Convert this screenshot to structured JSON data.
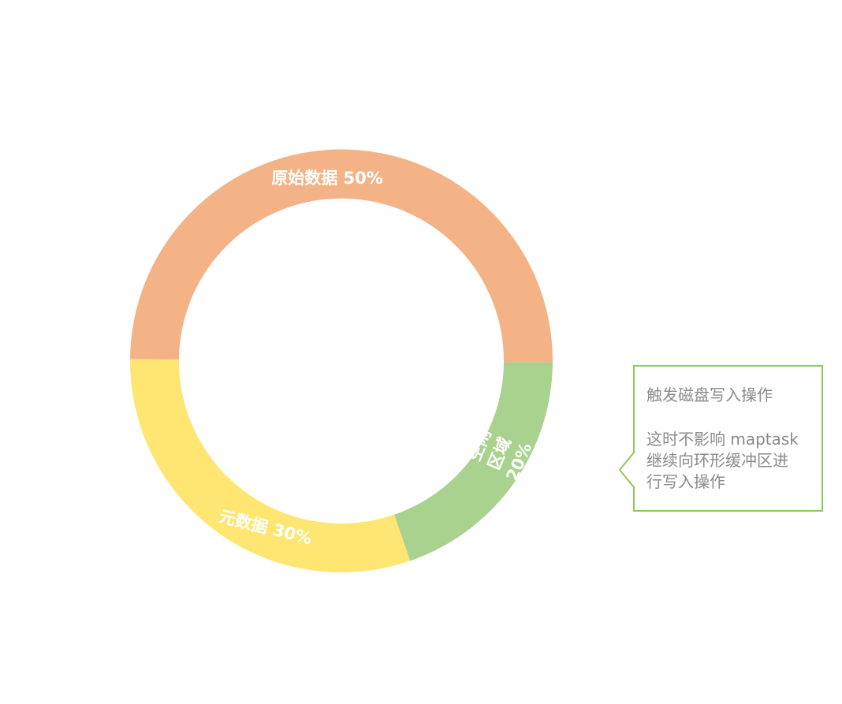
{
  "diagram": {
    "segments": [
      {
        "id": "raw-data",
        "label": "原始数据 50%",
        "percent": 50,
        "color": "#F3B386"
      },
      {
        "id": "free-area",
        "label_lines": [
          "空闲",
          "区域",
          "20%"
        ],
        "percent": 20,
        "color": "#A9D28E"
      },
      {
        "id": "metadata",
        "label": "元数据 30%",
        "percent": 30,
        "color": "#FFE571"
      }
    ],
    "callout": {
      "title": "触发磁盘写入操作",
      "lines": [
        "这时不影响 maptask",
        "继续向环形缓冲区进",
        "行写入操作"
      ],
      "border_color": "#8DC955",
      "text_color": "#8A8A8A"
    }
  }
}
